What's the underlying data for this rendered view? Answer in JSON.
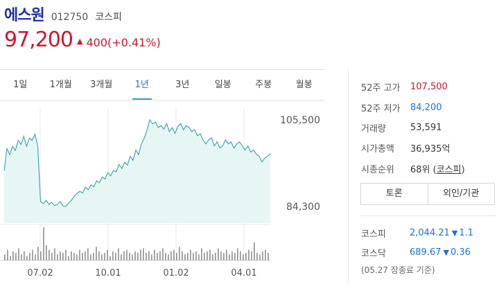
{
  "stock": {
    "name": "에스원",
    "code": "012750",
    "market": "코스피",
    "price": "97,200",
    "change_arrow": "▲",
    "change": "400(+0.41%)"
  },
  "tabs": [
    {
      "label": "1일"
    },
    {
      "label": "1개월"
    },
    {
      "label": "3개월"
    },
    {
      "label": "1년"
    },
    {
      "label": "3년"
    },
    {
      "label": "일봉"
    },
    {
      "label": "주봉"
    },
    {
      "label": "월봉"
    }
  ],
  "active_tab": "1년",
  "stats": [
    {
      "label": "52주 고가",
      "value": "107,500",
      "color": "red"
    },
    {
      "label": "52주 저가",
      "value": "84,200",
      "color": "blue"
    },
    {
      "label": "거래량",
      "value": "53,591",
      "color": "normal"
    },
    {
      "label": "시가총액",
      "value": "36,935억",
      "color": "normal"
    },
    {
      "label": "시총순위",
      "value_prefix": "68위 (",
      "link": "코스피",
      "value_suffix": ")",
      "color": "normal"
    }
  ],
  "buttons": {
    "discussion": "토론",
    "foreign_inst": "외인/기관"
  },
  "indices": [
    {
      "label": "코스피",
      "value": "2,044.21",
      "arrow": "▼",
      "change": "1.1"
    },
    {
      "label": "코스닥",
      "value": "689.67",
      "arrow": "▼",
      "change": "0.36"
    }
  ],
  "basis": "(05.27 장종료 기준)",
  "colors": {
    "price_up": "#d1142b",
    "price_down": "#1e6fd9",
    "line": "#3c9ea6",
    "area": "#e6f6f5",
    "volume": "#9a9a9a",
    "tab_active_bar": "#2aa5b0"
  },
  "chart_data": {
    "type": "area",
    "x_tick_labels": [
      "07.02",
      "10.01",
      "01.02",
      "04.01"
    ],
    "y_tick_labels": [
      "105,500",
      "84,300"
    ],
    "ylim": [
      84300,
      105500
    ],
    "grid": true,
    "price": [
      93000,
      98500,
      97000,
      99000,
      98000,
      100500,
      99500,
      101500,
      99000,
      101000,
      100500,
      102000,
      99000,
      85500,
      85000,
      85800,
      84800,
      85300,
      84500,
      84800,
      85500,
      84400,
      84300,
      85200,
      85800,
      86800,
      87500,
      88000,
      87600,
      89000,
      88400,
      89600,
      89100,
      90600,
      90100,
      91500,
      91000,
      92600,
      91800,
      93100,
      92800,
      94600,
      93600,
      95100,
      94400,
      96600,
      95600,
      98100,
      97000,
      99600,
      101000,
      103000,
      105500,
      104500,
      105000,
      103600,
      104100,
      103200,
      104600,
      102600,
      103600,
      102200,
      103900,
      104600,
      103100,
      104100,
      103600,
      102600,
      103100,
      101600,
      102100,
      100600,
      99600,
      100600,
      101100,
      99100,
      100100,
      98600,
      99100,
      100600,
      99600,
      100100,
      98600,
      99600,
      100100,
      99100,
      98100,
      99100,
      97600,
      98100,
      97100,
      96600,
      95200,
      96100,
      96600,
      97200
    ],
    "volume": [
      4,
      7,
      3,
      6,
      5,
      8,
      4,
      6,
      3,
      5,
      7,
      4,
      9,
      6,
      22,
      10,
      7,
      5,
      8,
      4,
      6,
      5,
      7,
      3,
      6,
      5,
      4,
      7,
      5,
      6,
      8,
      4,
      5,
      9,
      6,
      4,
      5,
      7,
      3,
      6,
      5,
      8,
      4,
      6,
      7,
      5,
      4,
      6,
      5,
      7,
      8,
      5,
      6,
      4,
      7,
      5,
      6,
      8,
      5,
      4,
      6,
      7,
      5,
      9,
      6,
      4,
      5,
      7,
      5,
      6,
      4,
      8,
      5,
      6,
      7,
      4,
      5,
      8,
      6,
      5,
      7,
      4,
      6,
      5,
      8,
      6,
      4,
      5,
      7,
      6,
      12,
      5,
      4,
      6,
      7,
      5
    ]
  }
}
